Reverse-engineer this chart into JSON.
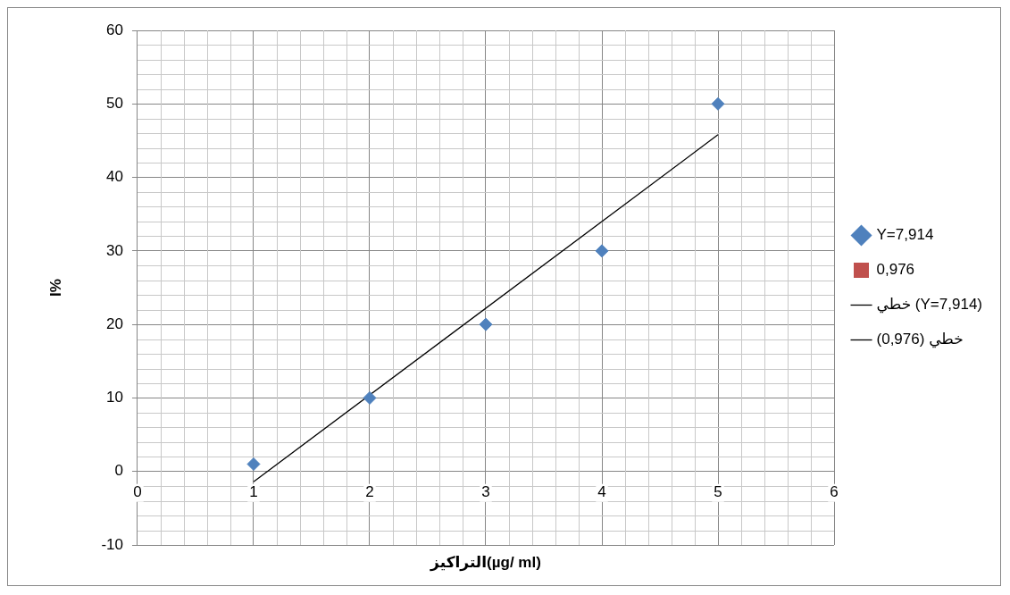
{
  "chart_data": {
    "type": "scatter",
    "xlabel": "التراكيز(µg/ ml)",
    "ylabel": "I%",
    "xlim": [
      0,
      6
    ],
    "xticks": [
      0,
      1,
      2,
      3,
      4,
      5,
      6
    ],
    "ylim": [
      -10,
      60
    ],
    "yticks": [
      -10,
      0,
      10,
      20,
      30,
      40,
      50,
      60
    ],
    "grid": true,
    "legend": "right",
    "series": [
      {
        "name": "Y=7,914",
        "type": "scatter",
        "marker": "diamond",
        "color": "#4f81bd",
        "x": [
          1,
          2,
          3,
          4,
          5
        ],
        "values": [
          1,
          10,
          20,
          30,
          50
        ]
      },
      {
        "name": "0,976",
        "type": "scatter",
        "marker": "square",
        "color": "#c0504d"
      },
      {
        "name": "خطي (Y=7,914)",
        "type": "line",
        "marker": "none",
        "color": "#000000",
        "x": [
          1,
          5
        ],
        "values": [
          -1.4,
          45.8
        ]
      },
      {
        "name": "خطي (0,976)",
        "type": "line",
        "marker": "none",
        "color": "#000000"
      }
    ]
  }
}
